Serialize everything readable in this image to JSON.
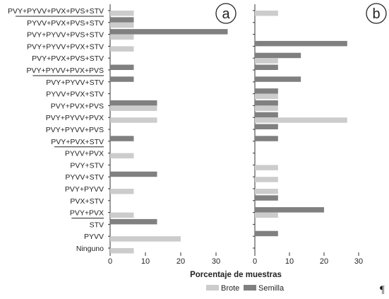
{
  "chart_data": [
    {
      "type": "bar",
      "orientation": "horizontal",
      "panel": "a",
      "categories": [
        "PVY+PYVV+PVX+PVS+STV",
        "PYVV+PVX+PVS+STV",
        "PVY+PYVV+PVS+STV",
        "PVY+PYVV+PVX+STV",
        "PVY+PVX+PVS+STV",
        "PVY+PYVV+PVX+PVS",
        "PVY+PYVV+STV",
        "PYVV+PVX+STV",
        "PVY+PVX+PVS",
        "PVY+PYVV+PVX",
        "PVY+PYVV+PVS",
        "PVY+PVX+STV",
        "PYVV+PVX",
        "PVY+STV",
        "PYVV+STV",
        "PVY+PYVV",
        "PVX+STV",
        "PVY+PVX",
        "STV",
        "PYVV",
        "Ninguno"
      ],
      "series": [
        {
          "name": "Semilla",
          "values": [
            0,
            6.7,
            33.3,
            0,
            0,
            6.7,
            6.7,
            0,
            13.3,
            0,
            0,
            6.7,
            0,
            0,
            13.3,
            0,
            0,
            0,
            13.3,
            0,
            0
          ]
        },
        {
          "name": "Brote",
          "values": [
            6.7,
            6.7,
            6.7,
            6.7,
            0,
            0,
            0,
            0,
            13.3,
            13.3,
            0,
            0,
            6.7,
            0,
            0,
            6.7,
            0,
            6.7,
            0,
            20,
            6.7
          ]
        }
      ],
      "xlim": [
        0,
        35
      ],
      "xticks": [
        "0",
        "10",
        "20",
        "30"
      ],
      "underlined_categories": [
        0,
        5,
        11,
        17
      ]
    },
    {
      "type": "bar",
      "orientation": "horizontal",
      "panel": "b",
      "series": [
        {
          "name": "Semilla",
          "values": [
            0,
            0,
            0,
            26.7,
            13.3,
            6.7,
            13.3,
            6.7,
            6.7,
            6.7,
            6.7,
            6.7,
            0,
            0,
            0,
            0,
            6.7,
            20,
            0,
            6.7,
            0
          ]
        },
        {
          "name": "Brote",
          "values": [
            6.7,
            0,
            0,
            0,
            6.7,
            0,
            0,
            6.7,
            6.7,
            26.7,
            0,
            0,
            0,
            6.7,
            6.7,
            6.7,
            0,
            6.7,
            0,
            0,
            0
          ]
        }
      ],
      "xlim": [
        0,
        30
      ],
      "xticks": [
        "0",
        "10",
        "20",
        "30"
      ]
    }
  ],
  "xlabel": "Porcentaje de muestras",
  "panel_labels": [
    "a",
    "b"
  ],
  "legend": [
    {
      "name": "Brote",
      "color": "#cccccc"
    },
    {
      "name": "Semilla",
      "color": "#808080"
    }
  ],
  "colors": {
    "Semilla": "#808080",
    "Brote": "#cccccc",
    "axis": "#333333"
  },
  "pilcrow": "¶"
}
